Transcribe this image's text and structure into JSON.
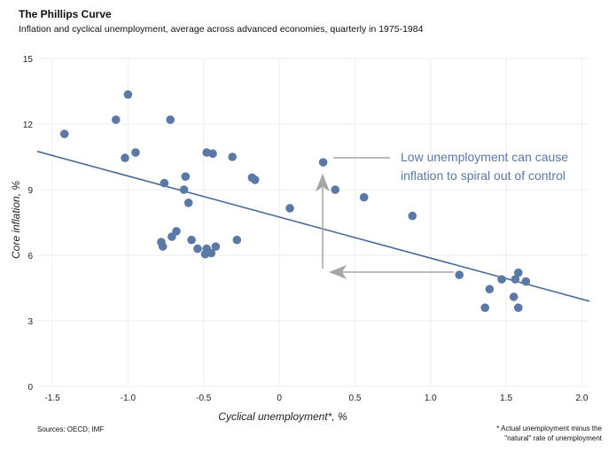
{
  "header": {
    "title": "The Phillips Curve",
    "subtitle": "Inflation and cyclical unemployment, average across advanced economies, quarterly in 1975-1984"
  },
  "footer": {
    "source": "Sources: OECD; IMF",
    "footnote_line1": "* Actual unemployment minus the",
    "footnote_line2": "\"natural\" rate of unemployment"
  },
  "colors": {
    "point": "#5a79a6",
    "trend": "#4a6c99",
    "arrow": "#a6a6a6",
    "grid": "#eeeeee"
  },
  "chart_data": {
    "type": "scatter",
    "xlabel": "Cyclical unemployment*, %",
    "ylabel": "Core inflation, %",
    "xlim": [
      -1.6,
      2.05
    ],
    "ylim": [
      0,
      15
    ],
    "xticks": [
      "-1.5",
      "-1.0",
      "-0.5",
      "0",
      "0.5",
      "1.0",
      "1.5",
      "2.0"
    ],
    "xtick_values": [
      -1.5,
      -1.0,
      -0.5,
      0,
      0.5,
      1.0,
      1.5,
      2.0
    ],
    "yticks": [
      "0",
      "3",
      "6",
      "9",
      "12",
      "15"
    ],
    "ytick_values": [
      0,
      3,
      6,
      9,
      12,
      15
    ],
    "grid": true,
    "trendline": {
      "x": [
        -1.6,
        2.05
      ],
      "y": [
        10.75,
        3.9
      ]
    },
    "annotation_line1": "Low unemployment can cause",
    "annotation_line2": "inflation to spiral out of control",
    "points": [
      {
        "x": -1.42,
        "y": 11.55
      },
      {
        "x": -1.08,
        "y": 12.2
      },
      {
        "x": -1.0,
        "y": 13.35
      },
      {
        "x": -1.02,
        "y": 10.45
      },
      {
        "x": -0.95,
        "y": 10.7
      },
      {
        "x": -0.72,
        "y": 12.2
      },
      {
        "x": -0.76,
        "y": 9.3
      },
      {
        "x": -0.48,
        "y": 10.7
      },
      {
        "x": -0.44,
        "y": 10.65
      },
      {
        "x": -0.31,
        "y": 10.5
      },
      {
        "x": -0.62,
        "y": 9.6
      },
      {
        "x": -0.63,
        "y": 9.0
      },
      {
        "x": -0.6,
        "y": 8.4
      },
      {
        "x": -0.18,
        "y": 9.55
      },
      {
        "x": -0.16,
        "y": 9.45
      },
      {
        "x": -0.68,
        "y": 7.1
      },
      {
        "x": -0.71,
        "y": 6.85
      },
      {
        "x": -0.78,
        "y": 6.6
      },
      {
        "x": -0.77,
        "y": 6.4
      },
      {
        "x": -0.58,
        "y": 6.7
      },
      {
        "x": -0.54,
        "y": 6.3
      },
      {
        "x": -0.48,
        "y": 6.3
      },
      {
        "x": -0.42,
        "y": 6.4
      },
      {
        "x": -0.45,
        "y": 6.1
      },
      {
        "x": -0.49,
        "y": 6.05
      },
      {
        "x": -0.28,
        "y": 6.7
      },
      {
        "x": 0.07,
        "y": 8.15
      },
      {
        "x": 0.29,
        "y": 10.25
      },
      {
        "x": 0.37,
        "y": 9.0
      },
      {
        "x": 0.56,
        "y": 8.65
      },
      {
        "x": 0.88,
        "y": 7.8
      },
      {
        "x": 1.19,
        "y": 5.1
      },
      {
        "x": 1.36,
        "y": 3.6
      },
      {
        "x": 1.39,
        "y": 4.45
      },
      {
        "x": 1.47,
        "y": 4.9
      },
      {
        "x": 1.56,
        "y": 4.9
      },
      {
        "x": 1.58,
        "y": 5.2
      },
      {
        "x": 1.63,
        "y": 4.8
      },
      {
        "x": 1.55,
        "y": 4.1
      },
      {
        "x": 1.58,
        "y": 3.6
      }
    ]
  }
}
